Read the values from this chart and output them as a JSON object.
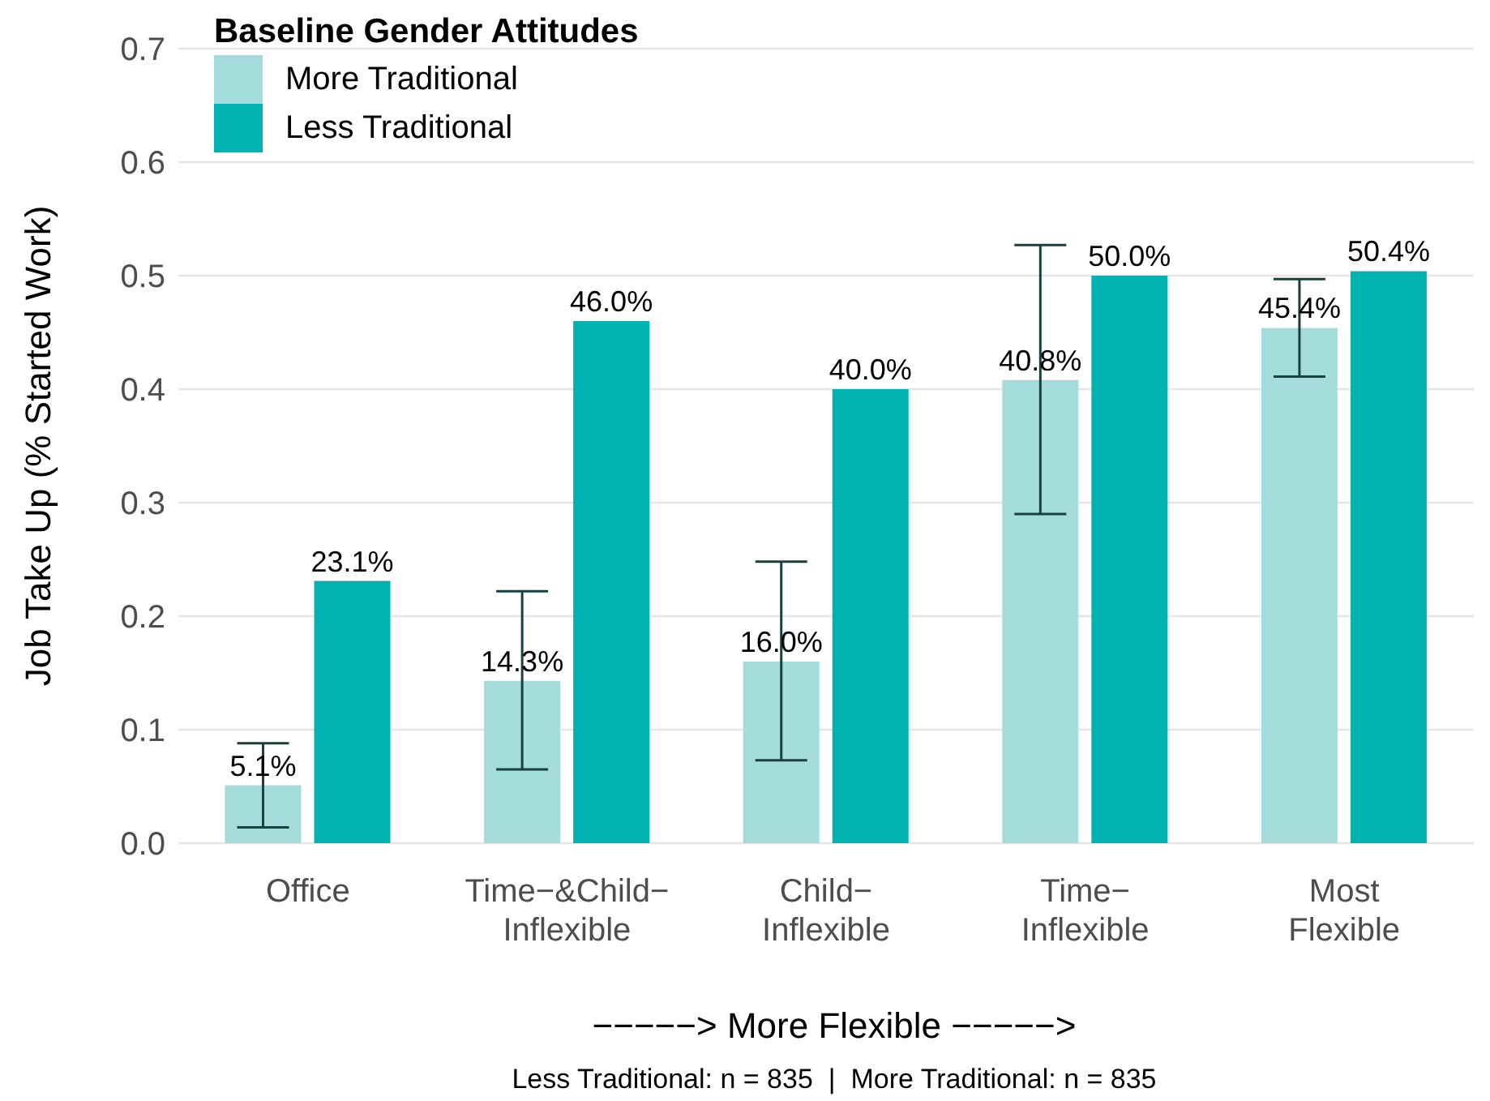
{
  "chart_data": {
    "type": "bar",
    "categories": [
      "Office",
      "Time−&Child−\nInflexible",
      "Child−\nInflexible",
      "Time−\nInflexible",
      "Most\nFlexible"
    ],
    "series": [
      {
        "name": "More Traditional",
        "color": "#a3dcdb",
        "values": [
          0.051,
          0.143,
          0.16,
          0.408,
          0.454
        ],
        "errors": [
          [
            0.014,
            0.088
          ],
          [
            0.065,
            0.222
          ],
          [
            0.073,
            0.248
          ],
          [
            0.29,
            0.527
          ],
          [
            0.411,
            0.497
          ]
        ],
        "value_labels": [
          "5.1%",
          "14.3%",
          "16.0%",
          "40.8%",
          "45.4%"
        ]
      },
      {
        "name": "Less Traditional",
        "color": "#00b2b0",
        "values": [
          0.231,
          0.46,
          0.4,
          0.5,
          0.504
        ],
        "value_labels": [
          "23.1%",
          "46.0%",
          "40.0%",
          "50.0%",
          "50.4%"
        ]
      }
    ],
    "ylabel": "Job Take Up (% Started Work)",
    "xlabel": "−−−−−> More Flexible −−−−−>",
    "legend_title": "Baseline Gender Attitudes",
    "legend": "top left",
    "grid": "y",
    "ylim": [
      0,
      0.7
    ],
    "yticks": [
      {
        "value": 0,
        "label": "0.0"
      },
      {
        "value": 0.1,
        "label": "0.1"
      },
      {
        "value": 0.2,
        "label": "0.2"
      },
      {
        "value": 0.3,
        "label": "0.3"
      },
      {
        "value": 0.4,
        "label": "0.4"
      },
      {
        "value": 0.5,
        "label": "0.5"
      },
      {
        "value": 0.6,
        "label": "0.6"
      },
      {
        "value": 0.7,
        "label": "0.7"
      }
    ],
    "annotations": [
      "Less Traditional: n = 835  |  More Traditional: n = 835"
    ]
  }
}
